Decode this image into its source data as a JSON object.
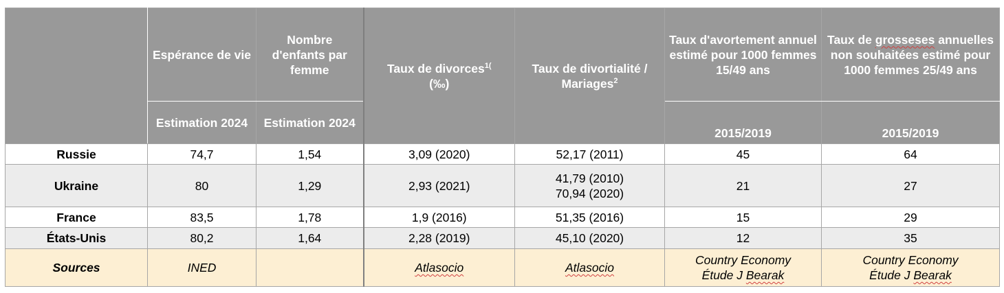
{
  "header": {
    "life_expectancy": "Espérance de vie",
    "children_per_woman": "Nombre d'enfants par femme",
    "divorce_rate": "Taux de divorces",
    "divorce_rate_sup": "1(",
    "divorce_rate_unit": "(‰)",
    "divortiality": "Taux de divortialité / Mariages",
    "divortiality_sup": "2",
    "abortion_rate": "Taux d'avortement annuel estimé pour 1000 femmes 15/49 ans",
    "unwanted_pregnancies_pre": "Taux de ",
    "unwanted_pregnancies_word": "grosseses",
    "unwanted_pregnancies_post": " annuelles non souhaitées estimé pour 1000 femmes 25/49 ans",
    "sub_estimation_1": "Estimation 2024",
    "sub_estimation_2": "Estimation 2024",
    "sub_period_1": "2015/2019",
    "sub_period_2": "2015/2019"
  },
  "rows": [
    {
      "country": "Russie",
      "life": "74,7",
      "children": "1,54",
      "divorce": "3,09 (2020)",
      "divortiality_1": "52,17 (2011)",
      "divortiality_2": "",
      "abortion": "45",
      "pregnancies": "64"
    },
    {
      "country": "Ukraine",
      "life": "80",
      "children": "1,29",
      "divorce": "2,93 (2021)",
      "divortiality_1": "41,79 (2010)",
      "divortiality_2": "70,94 (2020)",
      "abortion": "21",
      "pregnancies": "27"
    },
    {
      "country": "France",
      "life": "83,5",
      "children": "1,78",
      "divorce": "1,9 (2016)",
      "divortiality_1": "51,35 (2016)",
      "divortiality_2": "",
      "abortion": "15",
      "pregnancies": "29"
    },
    {
      "country": "États-Unis",
      "life": "80,2",
      "children": "1,64",
      "divorce": "2,28 (2019)",
      "divortiality_1": "45,10 (2020)",
      "divortiality_2": "",
      "abortion": "12",
      "pregnancies": "35"
    }
  ],
  "sources": {
    "label": "Sources",
    "life": "INED",
    "children": "",
    "divorce": "Atlasocio",
    "divortiality": "Atlasocio",
    "abortion_1": "Country Economy",
    "abortion_2_pre": "Étude J ",
    "abortion_2_word": "Bearak",
    "pregnancies_1": "Country Economy",
    "pregnancies_2_pre": "Étude J ",
    "pregnancies_2_word": "Bearak"
  }
}
